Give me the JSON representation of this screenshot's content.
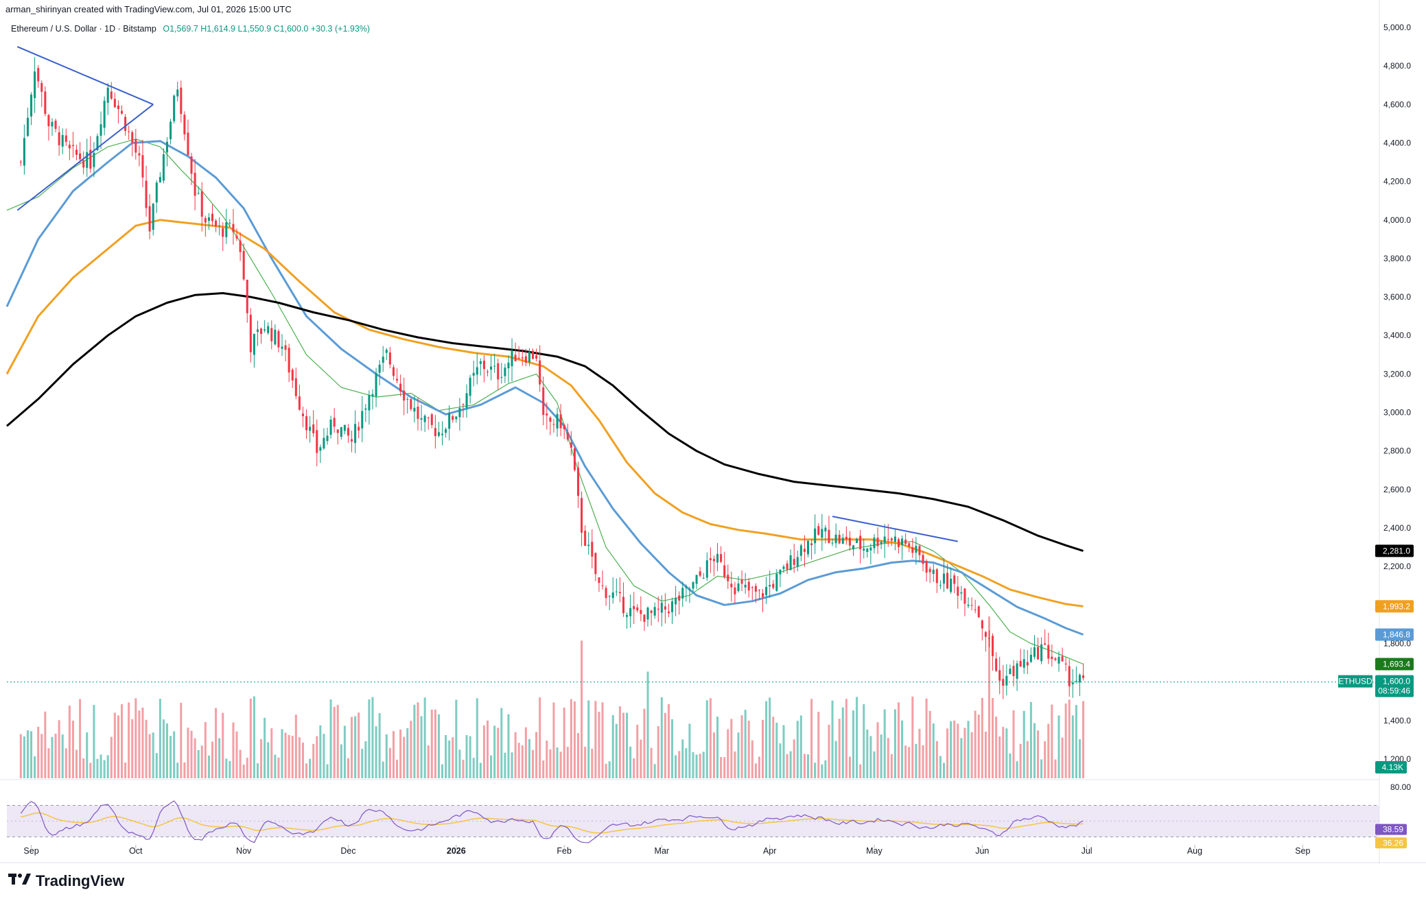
{
  "header": {
    "credit": "arman_shirinyan created with TradingView.com, Jul 01, 2026 15:00 UTC"
  },
  "legend": {
    "symbol": "Ethereum / U.S. Dollar · 1D · Bitstamp",
    "open": "O1,569.7",
    "high": "H1,614.9",
    "low": "L1,550.9",
    "close": "C1,600.0",
    "change": "+30.3 (+1.93%)"
  },
  "brand": {
    "name": "TradingView",
    "icon": "tradingview-logo-icon"
  },
  "colors": {
    "up": "#089981",
    "down": "#f23645",
    "vol_up": "#7fccc2",
    "vol_down": "#f2a0a5",
    "ma20": "#4caf50",
    "ma50": "#5b9bd5",
    "ma100": "#f0a020",
    "ma200": "#000000",
    "rsi": "#7e57c2",
    "rsi_ma": "#f5c542",
    "rsi_band": "#ede7f6",
    "trendline": "#3a5fcd"
  },
  "chart_data": {
    "type": "candlestick",
    "symbol": "ETHUSD",
    "timeframe": "1D",
    "ylim": [
      1100,
      5000
    ],
    "price_ticks": [
      "5,000.0",
      "4,800.0",
      "4,600.0",
      "4,400.0",
      "4,200.0",
      "4,000.0",
      "3,800.0",
      "3,600.0",
      "3,400.0",
      "3,200.0",
      "3,000.0",
      "2,800.0",
      "2,600.0",
      "2,400.0",
      "2,200.0",
      "1,800.0",
      "1,400.0",
      "1,200.0"
    ],
    "price_tick_values": [
      5000,
      4800,
      4600,
      4400,
      4200,
      4000,
      3800,
      3600,
      3400,
      3200,
      3000,
      2800,
      2600,
      2400,
      2200,
      1800,
      1400,
      1200
    ],
    "time_labels": [
      "Sep",
      "Oct",
      "Nov",
      "Dec",
      "2026",
      "Feb",
      "Mar",
      "Apr",
      "May",
      "Jun",
      "Jul",
      "Aug",
      "Sep"
    ],
    "time_label_days": [
      3,
      33,
      64,
      94,
      125,
      156,
      184,
      215,
      245,
      276,
      306,
      337,
      368
    ],
    "total_days_range": [
      -4,
      390
    ],
    "last_candle_day": 305,
    "key_points": [
      {
        "d": 0,
        "p": 4300
      },
      {
        "d": 4,
        "p": 4800
      },
      {
        "d": 8,
        "p": 4500
      },
      {
        "d": 14,
        "p": 4350
      },
      {
        "d": 20,
        "p": 4300
      },
      {
        "d": 25,
        "p": 4700
      },
      {
        "d": 30,
        "p": 4500
      },
      {
        "d": 34,
        "p": 4300
      },
      {
        "d": 37,
        "p": 3950
      },
      {
        "d": 40,
        "p": 4250
      },
      {
        "d": 45,
        "p": 4700
      },
      {
        "d": 50,
        "p": 4150
      },
      {
        "d": 53,
        "p": 4000
      },
      {
        "d": 57,
        "p": 3950
      },
      {
        "d": 61,
        "p": 3950
      },
      {
        "d": 63,
        "p": 3850
      },
      {
        "d": 66,
        "p": 3350
      },
      {
        "d": 70,
        "p": 3450
      },
      {
        "d": 75,
        "p": 3350
      },
      {
        "d": 80,
        "p": 3050
      },
      {
        "d": 85,
        "p": 2800
      },
      {
        "d": 90,
        "p": 2950
      },
      {
        "d": 95,
        "p": 2850
      },
      {
        "d": 100,
        "p": 3100
      },
      {
        "d": 105,
        "p": 3300
      },
      {
        "d": 110,
        "p": 3100
      },
      {
        "d": 115,
        "p": 2950
      },
      {
        "d": 120,
        "p": 2900
      },
      {
        "d": 125,
        "p": 3000
      },
      {
        "d": 132,
        "p": 3250
      },
      {
        "d": 137,
        "p": 3200
      },
      {
        "d": 142,
        "p": 3300
      },
      {
        "d": 148,
        "p": 3300
      },
      {
        "d": 150,
        "p": 2950
      },
      {
        "d": 155,
        "p": 2950
      },
      {
        "d": 158,
        "p": 2800
      },
      {
        "d": 161,
        "p": 2400
      },
      {
        "d": 166,
        "p": 2100
      },
      {
        "d": 170,
        "p": 2050
      },
      {
        "d": 176,
        "p": 1950
      },
      {
        "d": 182,
        "p": 1950
      },
      {
        "d": 187,
        "p": 2000
      },
      {
        "d": 193,
        "p": 2100
      },
      {
        "d": 199,
        "p": 2250
      },
      {
        "d": 205,
        "p": 2100
      },
      {
        "d": 212,
        "p": 2050
      },
      {
        "d": 218,
        "p": 2150
      },
      {
        "d": 224,
        "p": 2300
      },
      {
        "d": 230,
        "p": 2380
      },
      {
        "d": 236,
        "p": 2330
      },
      {
        "d": 242,
        "p": 2300
      },
      {
        "d": 248,
        "p": 2360
      },
      {
        "d": 254,
        "p": 2320
      },
      {
        "d": 258,
        "p": 2250
      },
      {
        "d": 262,
        "p": 2150
      },
      {
        "d": 268,
        "p": 2100
      },
      {
        "d": 274,
        "p": 2000
      },
      {
        "d": 278,
        "p": 1800
      },
      {
        "d": 281,
        "p": 1600
      },
      {
        "d": 285,
        "p": 1660
      },
      {
        "d": 290,
        "p": 1720
      },
      {
        "d": 293,
        "p": 1780
      },
      {
        "d": 298,
        "p": 1700
      },
      {
        "d": 301,
        "p": 1620
      },
      {
        "d": 305,
        "p": 1600
      }
    ],
    "moving_averages": [
      {
        "id": "ma20",
        "points": [
          [
            -4,
            4050
          ],
          [
            5,
            4120
          ],
          [
            15,
            4270
          ],
          [
            25,
            4380
          ],
          [
            33,
            4420
          ],
          [
            40,
            4380
          ],
          [
            46,
            4260
          ],
          [
            52,
            4150
          ],
          [
            58,
            4020
          ],
          [
            64,
            3860
          ],
          [
            72,
            3620
          ],
          [
            82,
            3300
          ],
          [
            92,
            3130
          ],
          [
            102,
            3080
          ],
          [
            112,
            3100
          ],
          [
            120,
            3010
          ],
          [
            130,
            3040
          ],
          [
            140,
            3150
          ],
          [
            148,
            3200
          ],
          [
            154,
            3050
          ],
          [
            160,
            2700
          ],
          [
            168,
            2300
          ],
          [
            176,
            2100
          ],
          [
            184,
            2020
          ],
          [
            192,
            2050
          ],
          [
            200,
            2150
          ],
          [
            208,
            2130
          ],
          [
            218,
            2170
          ],
          [
            228,
            2230
          ],
          [
            238,
            2290
          ],
          [
            248,
            2320
          ],
          [
            256,
            2330
          ],
          [
            262,
            2280
          ],
          [
            270,
            2170
          ],
          [
            278,
            2000
          ],
          [
            284,
            1860
          ],
          [
            290,
            1800
          ],
          [
            296,
            1760
          ],
          [
            300,
            1730
          ],
          [
            305,
            1693
          ]
        ],
        "label": "1,693.4"
      },
      {
        "id": "ma50",
        "points": [
          [
            -4,
            3550
          ],
          [
            5,
            3900
          ],
          [
            15,
            4150
          ],
          [
            25,
            4300
          ],
          [
            32,
            4400
          ],
          [
            40,
            4410
          ],
          [
            48,
            4330
          ],
          [
            56,
            4220
          ],
          [
            64,
            4060
          ],
          [
            72,
            3800
          ],
          [
            82,
            3500
          ],
          [
            92,
            3330
          ],
          [
            102,
            3200
          ],
          [
            112,
            3080
          ],
          [
            122,
            2990
          ],
          [
            132,
            3040
          ],
          [
            142,
            3130
          ],
          [
            150,
            3050
          ],
          [
            156,
            2930
          ],
          [
            162,
            2720
          ],
          [
            170,
            2500
          ],
          [
            178,
            2320
          ],
          [
            186,
            2170
          ],
          [
            194,
            2050
          ],
          [
            202,
            2000
          ],
          [
            210,
            2020
          ],
          [
            218,
            2060
          ],
          [
            226,
            2130
          ],
          [
            234,
            2170
          ],
          [
            242,
            2190
          ],
          [
            250,
            2220
          ],
          [
            256,
            2230
          ],
          [
            262,
            2220
          ],
          [
            270,
            2170
          ],
          [
            278,
            2080
          ],
          [
            286,
            1990
          ],
          [
            294,
            1930
          ],
          [
            300,
            1880
          ],
          [
            305,
            1846
          ]
        ],
        "label": "1,846.8"
      },
      {
        "id": "ma100",
        "points": [
          [
            -4,
            3200
          ],
          [
            5,
            3500
          ],
          [
            15,
            3700
          ],
          [
            25,
            3850
          ],
          [
            33,
            3970
          ],
          [
            40,
            4000
          ],
          [
            50,
            3980
          ],
          [
            60,
            3960
          ],
          [
            70,
            3850
          ],
          [
            80,
            3680
          ],
          [
            90,
            3520
          ],
          [
            100,
            3430
          ],
          [
            110,
            3380
          ],
          [
            120,
            3340
          ],
          [
            130,
            3310
          ],
          [
            140,
            3290
          ],
          [
            150,
            3240
          ],
          [
            158,
            3140
          ],
          [
            166,
            2960
          ],
          [
            174,
            2740
          ],
          [
            182,
            2580
          ],
          [
            190,
            2480
          ],
          [
            198,
            2420
          ],
          [
            206,
            2390
          ],
          [
            214,
            2370
          ],
          [
            224,
            2340
          ],
          [
            234,
            2340
          ],
          [
            244,
            2340
          ],
          [
            252,
            2320
          ],
          [
            260,
            2270
          ],
          [
            268,
            2210
          ],
          [
            276,
            2150
          ],
          [
            284,
            2080
          ],
          [
            292,
            2040
          ],
          [
            300,
            2005
          ],
          [
            305,
            1993
          ]
        ],
        "label": "1,993.2"
      },
      {
        "id": "ma200",
        "points": [
          [
            -4,
            2930
          ],
          [
            5,
            3070
          ],
          [
            15,
            3250
          ],
          [
            25,
            3400
          ],
          [
            33,
            3500
          ],
          [
            42,
            3570
          ],
          [
            50,
            3610
          ],
          [
            58,
            3620
          ],
          [
            66,
            3600
          ],
          [
            74,
            3570
          ],
          [
            84,
            3520
          ],
          [
            94,
            3480
          ],
          [
            104,
            3430
          ],
          [
            114,
            3390
          ],
          [
            124,
            3360
          ],
          [
            134,
            3340
          ],
          [
            144,
            3320
          ],
          [
            154,
            3290
          ],
          [
            162,
            3240
          ],
          [
            170,
            3140
          ],
          [
            178,
            3010
          ],
          [
            186,
            2890
          ],
          [
            194,
            2800
          ],
          [
            202,
            2730
          ],
          [
            212,
            2680
          ],
          [
            222,
            2640
          ],
          [
            232,
            2620
          ],
          [
            242,
            2600
          ],
          [
            252,
            2580
          ],
          [
            262,
            2550
          ],
          [
            272,
            2510
          ],
          [
            282,
            2440
          ],
          [
            292,
            2360
          ],
          [
            300,
            2310
          ],
          [
            305,
            2281
          ]
        ],
        "label": "2,281.0"
      }
    ],
    "trendlines": [
      {
        "points": [
          [
            -1,
            4900
          ],
          [
            38,
            4600
          ]
        ]
      },
      {
        "points": [
          [
            -1,
            4050
          ],
          [
            38,
            4600
          ]
        ]
      },
      {
        "points": [
          [
            233,
            2460
          ],
          [
            269,
            2330
          ]
        ]
      }
    ],
    "last_price": {
      "symbol": "ETHUSD",
      "price": "1,600.0",
      "countdown": "08:59:46",
      "value": 1600
    },
    "volume": {
      "last_label": "4.13K"
    },
    "rsi": {
      "ylim": [
        0,
        100
      ],
      "upper_tick": "80.00",
      "bands": [
        70,
        30
      ],
      "value_label": "38.59",
      "ma_label": "36.26",
      "value": 38.59,
      "ma_value": 36.26
    }
  }
}
